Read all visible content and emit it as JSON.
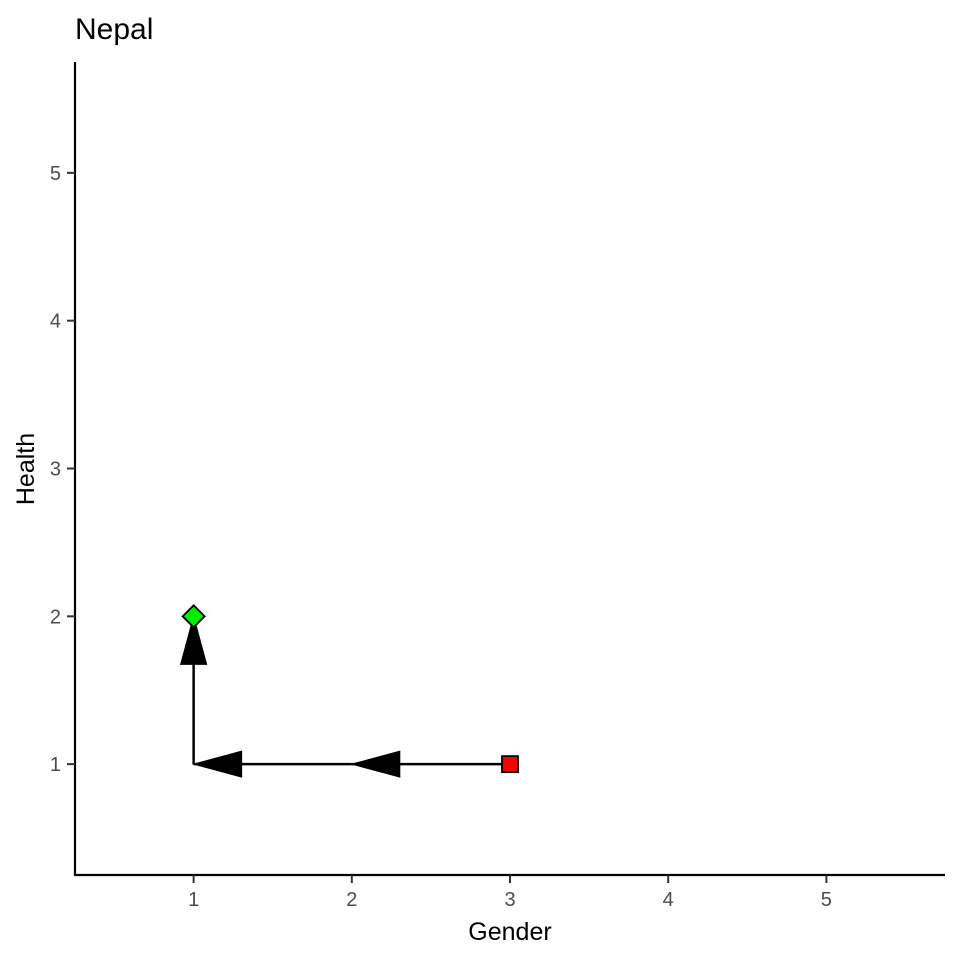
{
  "chart_data": {
    "type": "line",
    "title": "Nepal",
    "xlabel": "Gender",
    "ylabel": "Health",
    "xlim": [
      0.25,
      5.75
    ],
    "ylim": [
      0.25,
      5.75
    ],
    "x_ticks": [
      1,
      2,
      3,
      4,
      5
    ],
    "y_ticks": [
      1,
      2,
      3,
      4,
      5
    ],
    "grid": false,
    "path": [
      {
        "x": 3,
        "y": 1
      },
      {
        "x": 2,
        "y": 1
      },
      {
        "x": 1,
        "y": 1
      },
      {
        "x": 1,
        "y": 2
      }
    ],
    "start_point": {
      "x": 3,
      "y": 1,
      "shape": "square",
      "color": "#ff0000"
    },
    "end_point": {
      "x": 1,
      "y": 2,
      "shape": "diamond",
      "color": "#00ee00"
    }
  }
}
